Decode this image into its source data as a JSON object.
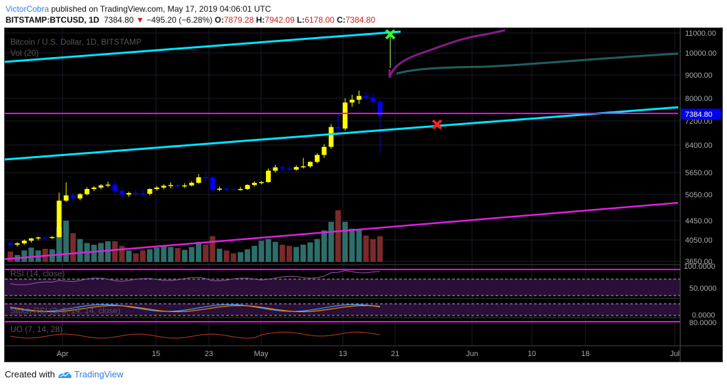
{
  "header": {
    "author": "VictorCobra",
    "published_text": "published on TradingView.com, May 17, 2019 04:06:01 UTC",
    "symbol": "BITSTAMP:BTCUSD, 1D",
    "price": "7384.80",
    "change": "−495.20 (−6.28%)",
    "open_label": "O:",
    "open": "7879.28",
    "high_label": "H:",
    "high": "7942.09",
    "low_label": "L:",
    "low": "6178.00",
    "close_label": "C:",
    "close": "7384.80"
  },
  "panes": {
    "title": "Bitcoin / U.S. Dollar, 1D, BITSTAMP",
    "volume_label": "Vol (20)",
    "rsi_label": "RSI (14, close)",
    "stoch_label": "Stoch RSI (3, 3, 14, 14, close)",
    "uo_label": "UO (7, 14, 28)",
    "rsi_scale": [
      "100.0000",
      "50.0000"
    ],
    "stoch_scale": [
      "0.0000"
    ],
    "uo_scale": [
      "80.0000"
    ]
  },
  "footer": {
    "created_with": "Created with",
    "brand": "TradingView"
  },
  "colors": {
    "bull": "#ffff00",
    "bear": "#0000ff",
    "vol_up": "#2e6e6a",
    "vol_down": "#7a2a2a",
    "channel": "#00e5ff",
    "hline": "#ff00ff",
    "support": "#e020e0",
    "projection": "#8a1a8a",
    "ma": "#1f5f5f"
  },
  "chart_data": {
    "type": "candlestick",
    "title": "Bitcoin / U.S. Dollar, 1D, BITSTAMP",
    "price_axis_ticks": [
      11000,
      10000,
      9000,
      8000,
      7200,
      6400,
      5650,
      5050,
      4450,
      4050,
      3650
    ],
    "last_price_label": "7384.80",
    "x_tick_labels": [
      "Apr",
      "15",
      "23",
      "May",
      "13",
      "21",
      "Jun",
      "10",
      "18",
      "Jul"
    ],
    "candles": [
      {
        "o": 3990,
        "h": 4030,
        "l": 3940,
        "c": 3955
      },
      {
        "o": 3960,
        "h": 4010,
        "l": 3925,
        "c": 3985
      },
      {
        "o": 3985,
        "h": 4060,
        "l": 3960,
        "c": 4035
      },
      {
        "o": 4035,
        "h": 4090,
        "l": 4000,
        "c": 4080
      },
      {
        "o": 4080,
        "h": 4120,
        "l": 4040,
        "c": 4100
      },
      {
        "o": 4100,
        "h": 4140,
        "l": 4070,
        "c": 4095
      },
      {
        "o": 4095,
        "h": 4130,
        "l": 4070,
        "c": 4110
      },
      {
        "o": 4110,
        "h": 5100,
        "l": 4090,
        "c": 4910
      },
      {
        "o": 4910,
        "h": 5380,
        "l": 4880,
        "c": 5030
      },
      {
        "o": 5030,
        "h": 5100,
        "l": 4900,
        "c": 4960
      },
      {
        "o": 4960,
        "h": 5090,
        "l": 4920,
        "c": 5060
      },
      {
        "o": 5060,
        "h": 5250,
        "l": 5030,
        "c": 5200
      },
      {
        "o": 5200,
        "h": 5280,
        "l": 5150,
        "c": 5240
      },
      {
        "o": 5240,
        "h": 5330,
        "l": 5190,
        "c": 5300
      },
      {
        "o": 5300,
        "h": 5400,
        "l": 5250,
        "c": 5320
      },
      {
        "o": 5320,
        "h": 5470,
        "l": 5070,
        "c": 5150
      },
      {
        "o": 5150,
        "h": 5250,
        "l": 4960,
        "c": 5050
      },
      {
        "o": 5050,
        "h": 5130,
        "l": 5000,
        "c": 5090
      },
      {
        "o": 5090,
        "h": 5200,
        "l": 5040,
        "c": 5080
      },
      {
        "o": 5080,
        "h": 5170,
        "l": 5010,
        "c": 5070
      },
      {
        "o": 5070,
        "h": 5220,
        "l": 5030,
        "c": 5200
      },
      {
        "o": 5200,
        "h": 5280,
        "l": 5160,
        "c": 5240
      },
      {
        "o": 5240,
        "h": 5330,
        "l": 5190,
        "c": 5290
      },
      {
        "o": 5290,
        "h": 5380,
        "l": 5220,
        "c": 5310
      },
      {
        "o": 5310,
        "h": 5340,
        "l": 5240,
        "c": 5270
      },
      {
        "o": 5270,
        "h": 5360,
        "l": 5230,
        "c": 5300
      },
      {
        "o": 5300,
        "h": 5410,
        "l": 5270,
        "c": 5370
      },
      {
        "o": 5370,
        "h": 5610,
        "l": 5340,
        "c": 5520
      },
      {
        "o": 5520,
        "h": 5640,
        "l": 5460,
        "c": 5510
      },
      {
        "o": 5510,
        "h": 5560,
        "l": 5110,
        "c": 5180
      },
      {
        "o": 5180,
        "h": 5270,
        "l": 5140,
        "c": 5210
      },
      {
        "o": 5210,
        "h": 5260,
        "l": 5150,
        "c": 5200
      },
      {
        "o": 5200,
        "h": 5250,
        "l": 5160,
        "c": 5190
      },
      {
        "o": 5190,
        "h": 5260,
        "l": 5160,
        "c": 5200
      },
      {
        "o": 5200,
        "h": 5330,
        "l": 5180,
        "c": 5310
      },
      {
        "o": 5310,
        "h": 5410,
        "l": 5270,
        "c": 5370
      },
      {
        "o": 5370,
        "h": 5420,
        "l": 5330,
        "c": 5390
      },
      {
        "o": 5390,
        "h": 5760,
        "l": 5370,
        "c": 5700
      },
      {
        "o": 5700,
        "h": 5860,
        "l": 5650,
        "c": 5790
      },
      {
        "o": 5790,
        "h": 5850,
        "l": 5700,
        "c": 5760
      },
      {
        "o": 5760,
        "h": 5830,
        "l": 5690,
        "c": 5730
      },
      {
        "o": 5730,
        "h": 5850,
        "l": 5700,
        "c": 5800
      },
      {
        "o": 5800,
        "h": 6050,
        "l": 5760,
        "c": 5820
      },
      {
        "o": 5820,
        "h": 5960,
        "l": 5780,
        "c": 5940
      },
      {
        "o": 5940,
        "h": 6180,
        "l": 5900,
        "c": 6130
      },
      {
        "o": 6130,
        "h": 6430,
        "l": 6050,
        "c": 6350
      },
      {
        "o": 6350,
        "h": 7100,
        "l": 6300,
        "c": 7000
      },
      {
        "o": 7000,
        "h": 7450,
        "l": 6800,
        "c": 6950
      },
      {
        "o": 6950,
        "h": 8000,
        "l": 6880,
        "c": 7850
      },
      {
        "o": 7850,
        "h": 8150,
        "l": 7700,
        "c": 7950
      },
      {
        "o": 7950,
        "h": 8330,
        "l": 7800,
        "c": 8100
      },
      {
        "o": 8100,
        "h": 8280,
        "l": 7950,
        "c": 8020
      },
      {
        "o": 8020,
        "h": 8200,
        "l": 7750,
        "c": 7880
      },
      {
        "o": 7879.28,
        "h": 7942.09,
        "l": 6178.0,
        "c": 7384.8
      }
    ],
    "volume": [
      18,
      12,
      20,
      25,
      20,
      23,
      22,
      60,
      72,
      50,
      40,
      33,
      30,
      33,
      36,
      36,
      28,
      20,
      15,
      20,
      22,
      25,
      28,
      26,
      24,
      21,
      26,
      35,
      30,
      45,
      23,
      20,
      15,
      17,
      22,
      28,
      37,
      40,
      35,
      30,
      28,
      26,
      30,
      34,
      40,
      55,
      70,
      90,
      70,
      58,
      56,
      46,
      40,
      45
    ]
  }
}
